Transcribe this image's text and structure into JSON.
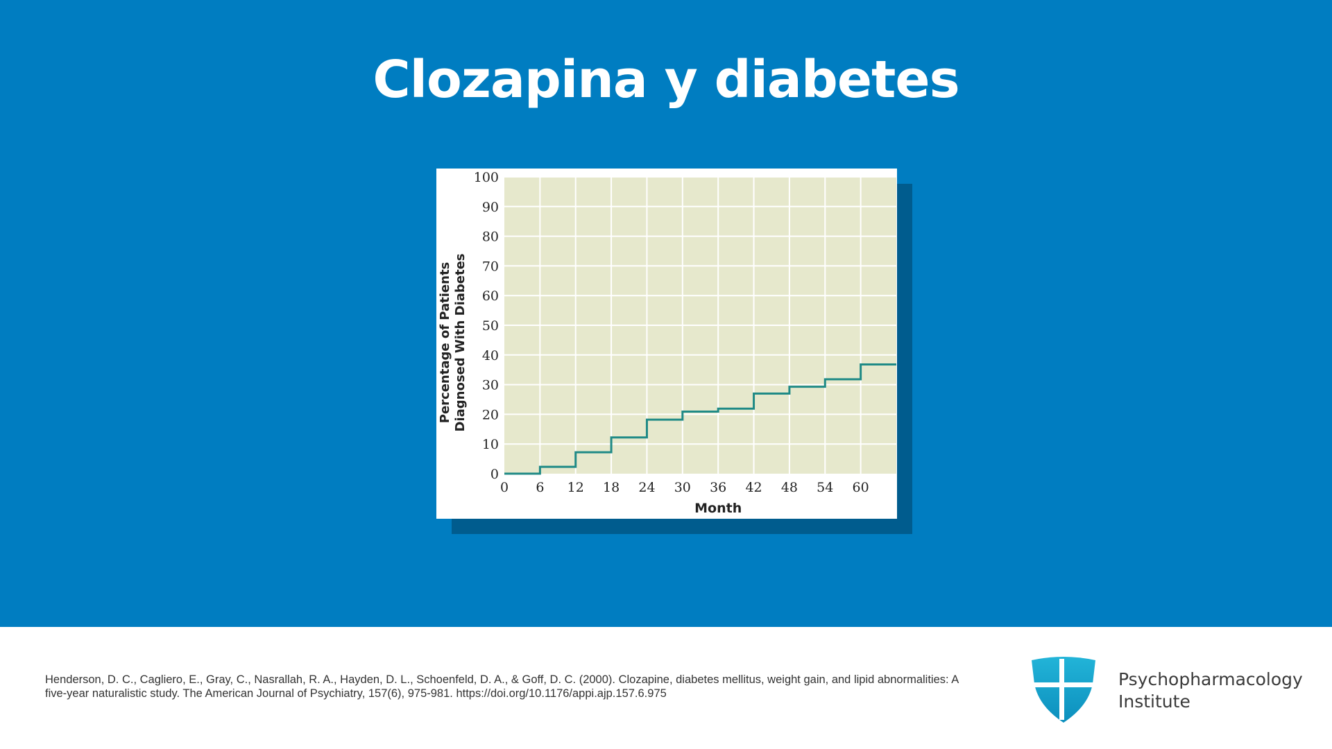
{
  "slide": {
    "title": "Clozapina y diabetes",
    "background_color": "#007dc1"
  },
  "chart_data": {
    "type": "line",
    "step": true,
    "xlabel": "Month",
    "ylabel_lines": [
      "Percentage of Patients",
      "Diagnosed With Diabetes"
    ],
    "x_ticks": [
      0,
      6,
      12,
      18,
      24,
      30,
      36,
      42,
      48,
      54,
      60
    ],
    "y_ticks": [
      0,
      10,
      20,
      30,
      40,
      50,
      60,
      70,
      80,
      90,
      100
    ],
    "xlim": [
      0,
      66
    ],
    "ylim": [
      0,
      100
    ],
    "grid": true,
    "plot_background": "#e6e8cc",
    "line_color": "#1f8a86",
    "series": [
      {
        "x": [
          0,
          6,
          12,
          18,
          24,
          30,
          36,
          42,
          48,
          54,
          60,
          66
        ],
        "y": [
          0,
          2.3,
          7.2,
          12.2,
          18.2,
          20.9,
          21.9,
          27.0,
          29.3,
          31.8,
          36.8,
          36.8
        ]
      }
    ]
  },
  "footer": {
    "citation": "Henderson, D. C., Cagliero, E., Gray, C., Nasrallah, R. A., Hayden, D. L., Schoenfeld, D. A., & Goff, D. C. (2000). Clozapine, diabetes mellitus, weight gain, and lipid abnormalities: A five-year naturalistic study. The American Journal of Psychiatry, 157(6), 975-981. https://doi.org/10.1176/appi.ajp.157.6.975",
    "logo_line1": "Psychopharmacology",
    "logo_line2": "Institute",
    "logo_icon": "shield-cross-icon",
    "logo_color": "#1aa7cf"
  }
}
